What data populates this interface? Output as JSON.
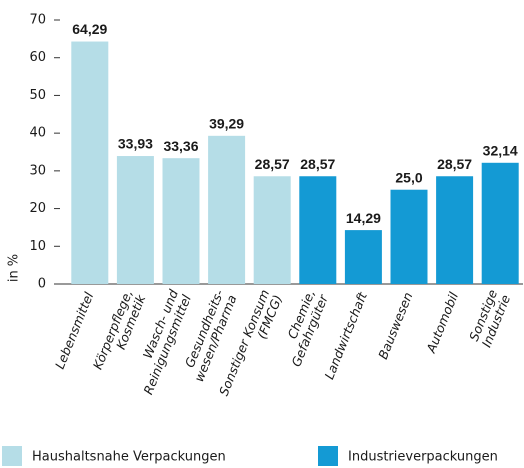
{
  "chart_data": {
    "type": "bar",
    "ylabel": "in %",
    "categories": [
      [
        "Lebensmittel"
      ],
      [
        "Körperpflege,",
        "Kosmetik"
      ],
      [
        "Wasch- und",
        "Reinigungsmittel"
      ],
      [
        "Gesundheits-",
        "wesen/Pharma"
      ],
      [
        "Sonstiger Konsum",
        "(FMCG)"
      ],
      [
        "Chemie,",
        "Gefahrgüter"
      ],
      [
        "Landwirtschaft"
      ],
      [
        "Bauswesen"
      ],
      [
        "Automobil"
      ],
      [
        "Sonstige",
        "Industrie"
      ]
    ],
    "series": [
      {
        "name": "Haushaltsnahe Verpackungen",
        "color": "#b5dde7",
        "values": [
          64.29,
          33.93,
          33.36,
          39.29,
          28.57,
          null,
          null,
          null,
          null,
          null
        ],
        "value_labels": [
          "64,29",
          "33,93",
          "33,36",
          "39,29",
          "28,57",
          null,
          null,
          null,
          null,
          null
        ]
      },
      {
        "name": "Industrieverpackungen",
        "color": "#149ad4",
        "values": [
          null,
          null,
          null,
          null,
          null,
          28.57,
          14.29,
          25.0,
          28.57,
          32.14
        ],
        "value_labels": [
          null,
          null,
          null,
          null,
          null,
          "28,57",
          "14,29",
          "25,0",
          "28,57",
          "32,14"
        ]
      }
    ],
    "ylim": [
      0,
      70
    ],
    "yticks": [
      0,
      10,
      20,
      30,
      40,
      50,
      60,
      70
    ],
    "grid": false
  }
}
